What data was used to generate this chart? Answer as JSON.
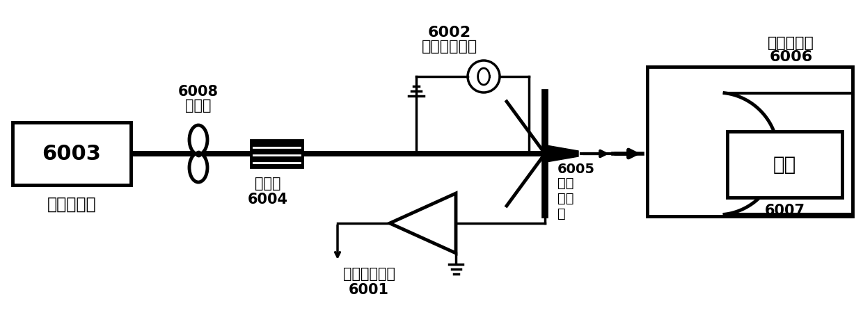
{
  "bg_color": "#ffffff",
  "line_color": "#000000",
  "text_color": "#000000",
  "figsize": [
    12.4,
    4.77
  ],
  "dpi": 100,
  "labels": {
    "6003_num": "6003",
    "6003_name": "飞秒激光器",
    "6008_num": "6008",
    "6008_name": "斩波器",
    "6004_name": "延迟线",
    "6004_num": "6004",
    "6002_num": "6002",
    "6002_name": "偏置电压电路",
    "6005_num": "6005",
    "6005_name": "太赫\n兹天\n线",
    "6006_num": "6006",
    "6006_name": "抛物反射镜",
    "6007_name": "样品",
    "6007_num": "6007",
    "6001_num": "6001",
    "6001_name": "信号输出电路"
  }
}
